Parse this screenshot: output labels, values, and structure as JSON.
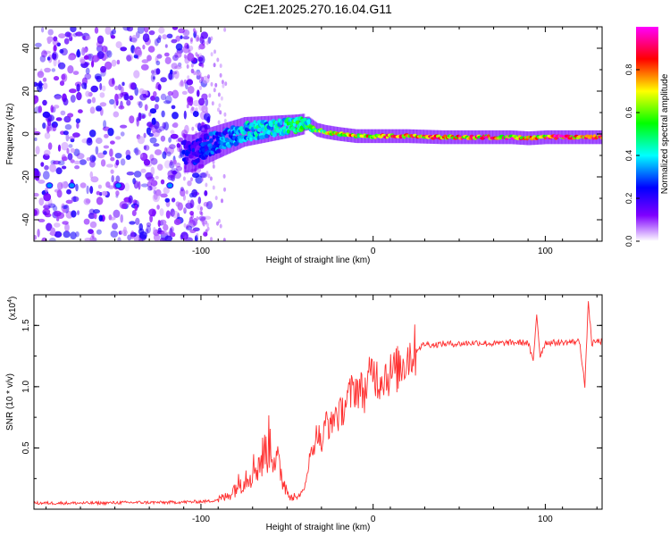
{
  "chart_data": [
    {
      "type": "heatmap",
      "title": "C2E1.2025.270.16.04.G11",
      "xlabel": "Height of straight line (km)",
      "ylabel": "Frequency (Hz)",
      "xlim": [
        -197,
        133
      ],
      "ylim": [
        -50,
        50
      ],
      "xticks": [
        -100,
        0,
        100
      ],
      "yticks": [
        -40,
        -20,
        0,
        20,
        40
      ],
      "ridge": {
        "x": [
          -105,
          -95,
          -85,
          -75,
          -65,
          -55,
          -45,
          -38,
          -33,
          -28,
          -20,
          -10,
          0,
          10,
          20,
          40,
          60,
          80,
          90,
          100,
          110,
          120,
          125,
          130
        ],
        "freq": [
          -9,
          -5,
          -2,
          1,
          2,
          3,
          4,
          5,
          2,
          1,
          0,
          -1,
          -1,
          -1,
          -1,
          -1.5,
          -1.5,
          -1.5,
          -2,
          -1.5,
          -1.5,
          -1.5,
          -1.5,
          -1.5
        ],
        "amplitude": [
          0.25,
          0.3,
          0.35,
          0.45,
          0.45,
          0.45,
          0.55,
          0.55,
          0.6,
          0.7,
          0.75,
          0.8,
          0.8,
          0.85,
          0.85,
          0.85,
          0.9,
          0.9,
          0.9,
          0.9,
          0.95,
          0.95,
          0.9,
          0.85
        ]
      },
      "noise_region": {
        "x": [
          -197,
          -100
        ],
        "freq": [
          -50,
          50
        ]
      },
      "colorbar": {
        "label": "Normalized spectral amplitude",
        "range": [
          0,
          1
        ],
        "ticks": [
          "0.0",
          "0.2",
          "0.4",
          "0.6",
          "0.8"
        ],
        "colors": [
          "#ffffff",
          "#8000ff",
          "#0000ff",
          "#00ffff",
          "#00ff00",
          "#ffff00",
          "#ff0000",
          "#ff00ff"
        ]
      },
      "xtick_labels": [
        "-100",
        "0",
        "100"
      ],
      "ytick_labels": [
        "-40",
        "-20",
        "0",
        "20",
        "40"
      ]
    },
    {
      "type": "line",
      "title": "",
      "xlabel": "Height of straight line (km)",
      "ylabel": "SNR (10 * v/v)",
      "y_exponent_label": "(x10",
      "y_exponent_power": "4",
      "y_exponent_close": ")",
      "xlim": [
        -197,
        133
      ],
      "ylim": [
        0,
        17500
      ],
      "xticks": [
        -100,
        0,
        100
      ],
      "yticks": [
        5000,
        10000,
        15000
      ],
      "xtick_labels": [
        "-100",
        "0",
        "100"
      ],
      "ytick_labels": [
        "0.5",
        "1.0",
        "1.5"
      ],
      "color": "#ff3030",
      "series": [
        {
          "name": "SNR",
          "x": [
            -197,
            -180,
            -160,
            -140,
            -120,
            -105,
            -95,
            -90,
            -85,
            -80,
            -75,
            -70,
            -65,
            -60,
            -55,
            -50,
            -45,
            -40,
            -38,
            -35,
            -32,
            -30,
            -27,
            -25,
            -22,
            -20,
            -15,
            -10,
            -5,
            0,
            3,
            6,
            10,
            15,
            20,
            25,
            30,
            35,
            40,
            50,
            60,
            70,
            80,
            90,
            93,
            95,
            97,
            100,
            110,
            120,
            123,
            125,
            127,
            130,
            133
          ],
          "y": [
            500,
            500,
            500,
            550,
            550,
            600,
            650,
            800,
            1000,
            1800,
            2500,
            3200,
            4000,
            5500,
            3500,
            1500,
            900,
            1500,
            3500,
            5000,
            6500,
            5000,
            7500,
            6500,
            8000,
            7500,
            9000,
            10000,
            9500,
            11500,
            10500,
            11000,
            11000,
            11500,
            12500,
            13000,
            13500,
            13400,
            13500,
            13500,
            13600,
            13500,
            13600,
            13600,
            12000,
            16000,
            12500,
            13600,
            13600,
            13700,
            10000,
            17000,
            13500,
            13700,
            13700
          ]
        }
      ]
    }
  ]
}
